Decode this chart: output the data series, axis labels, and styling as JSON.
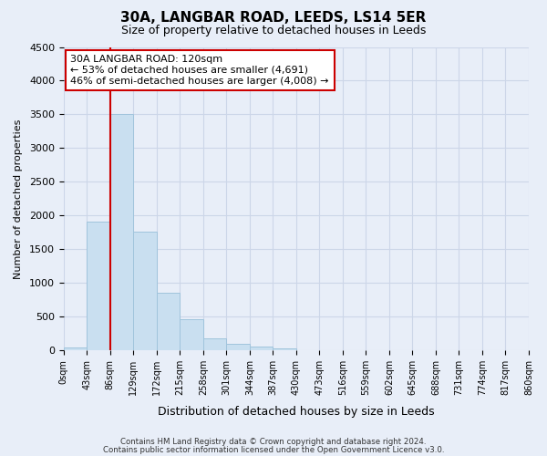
{
  "title": "30A, LANGBAR ROAD, LEEDS, LS14 5ER",
  "subtitle": "Size of property relative to detached houses in Leeds",
  "xlabel": "Distribution of detached houses by size in Leeds",
  "ylabel": "Number of detached properties",
  "bin_labels": [
    "0sqm",
    "43sqm",
    "86sqm",
    "129sqm",
    "172sqm",
    "215sqm",
    "258sqm",
    "301sqm",
    "344sqm",
    "387sqm",
    "430sqm",
    "473sqm",
    "516sqm",
    "559sqm",
    "602sqm",
    "645sqm",
    "688sqm",
    "731sqm",
    "774sqm",
    "817sqm",
    "860sqm"
  ],
  "bar_values": [
    40,
    1910,
    3500,
    1760,
    860,
    460,
    185,
    95,
    55,
    30,
    0,
    0,
    0,
    0,
    0,
    0,
    0,
    0,
    0,
    0
  ],
  "bar_color": "#c9dff0",
  "bar_edge_color": "#a0c4dc",
  "vline_x": 2,
  "vline_color": "#cc0000",
  "ylim": [
    0,
    4500
  ],
  "yticks": [
    0,
    500,
    1000,
    1500,
    2000,
    2500,
    3000,
    3500,
    4000,
    4500
  ],
  "annotation_box_text": "30A LANGBAR ROAD: 120sqm\n← 53% of detached houses are smaller (4,691)\n46% of semi-detached houses are larger (4,008) →",
  "annotation_box_color": "#cc0000",
  "annotation_box_bg": "#ffffff",
  "footer_line1": "Contains HM Land Registry data © Crown copyright and database right 2024.",
  "footer_line2": "Contains public sector information licensed under the Open Government Licence v3.0.",
  "grid_color": "#ccd6e8",
  "bg_color": "#e8eef8"
}
